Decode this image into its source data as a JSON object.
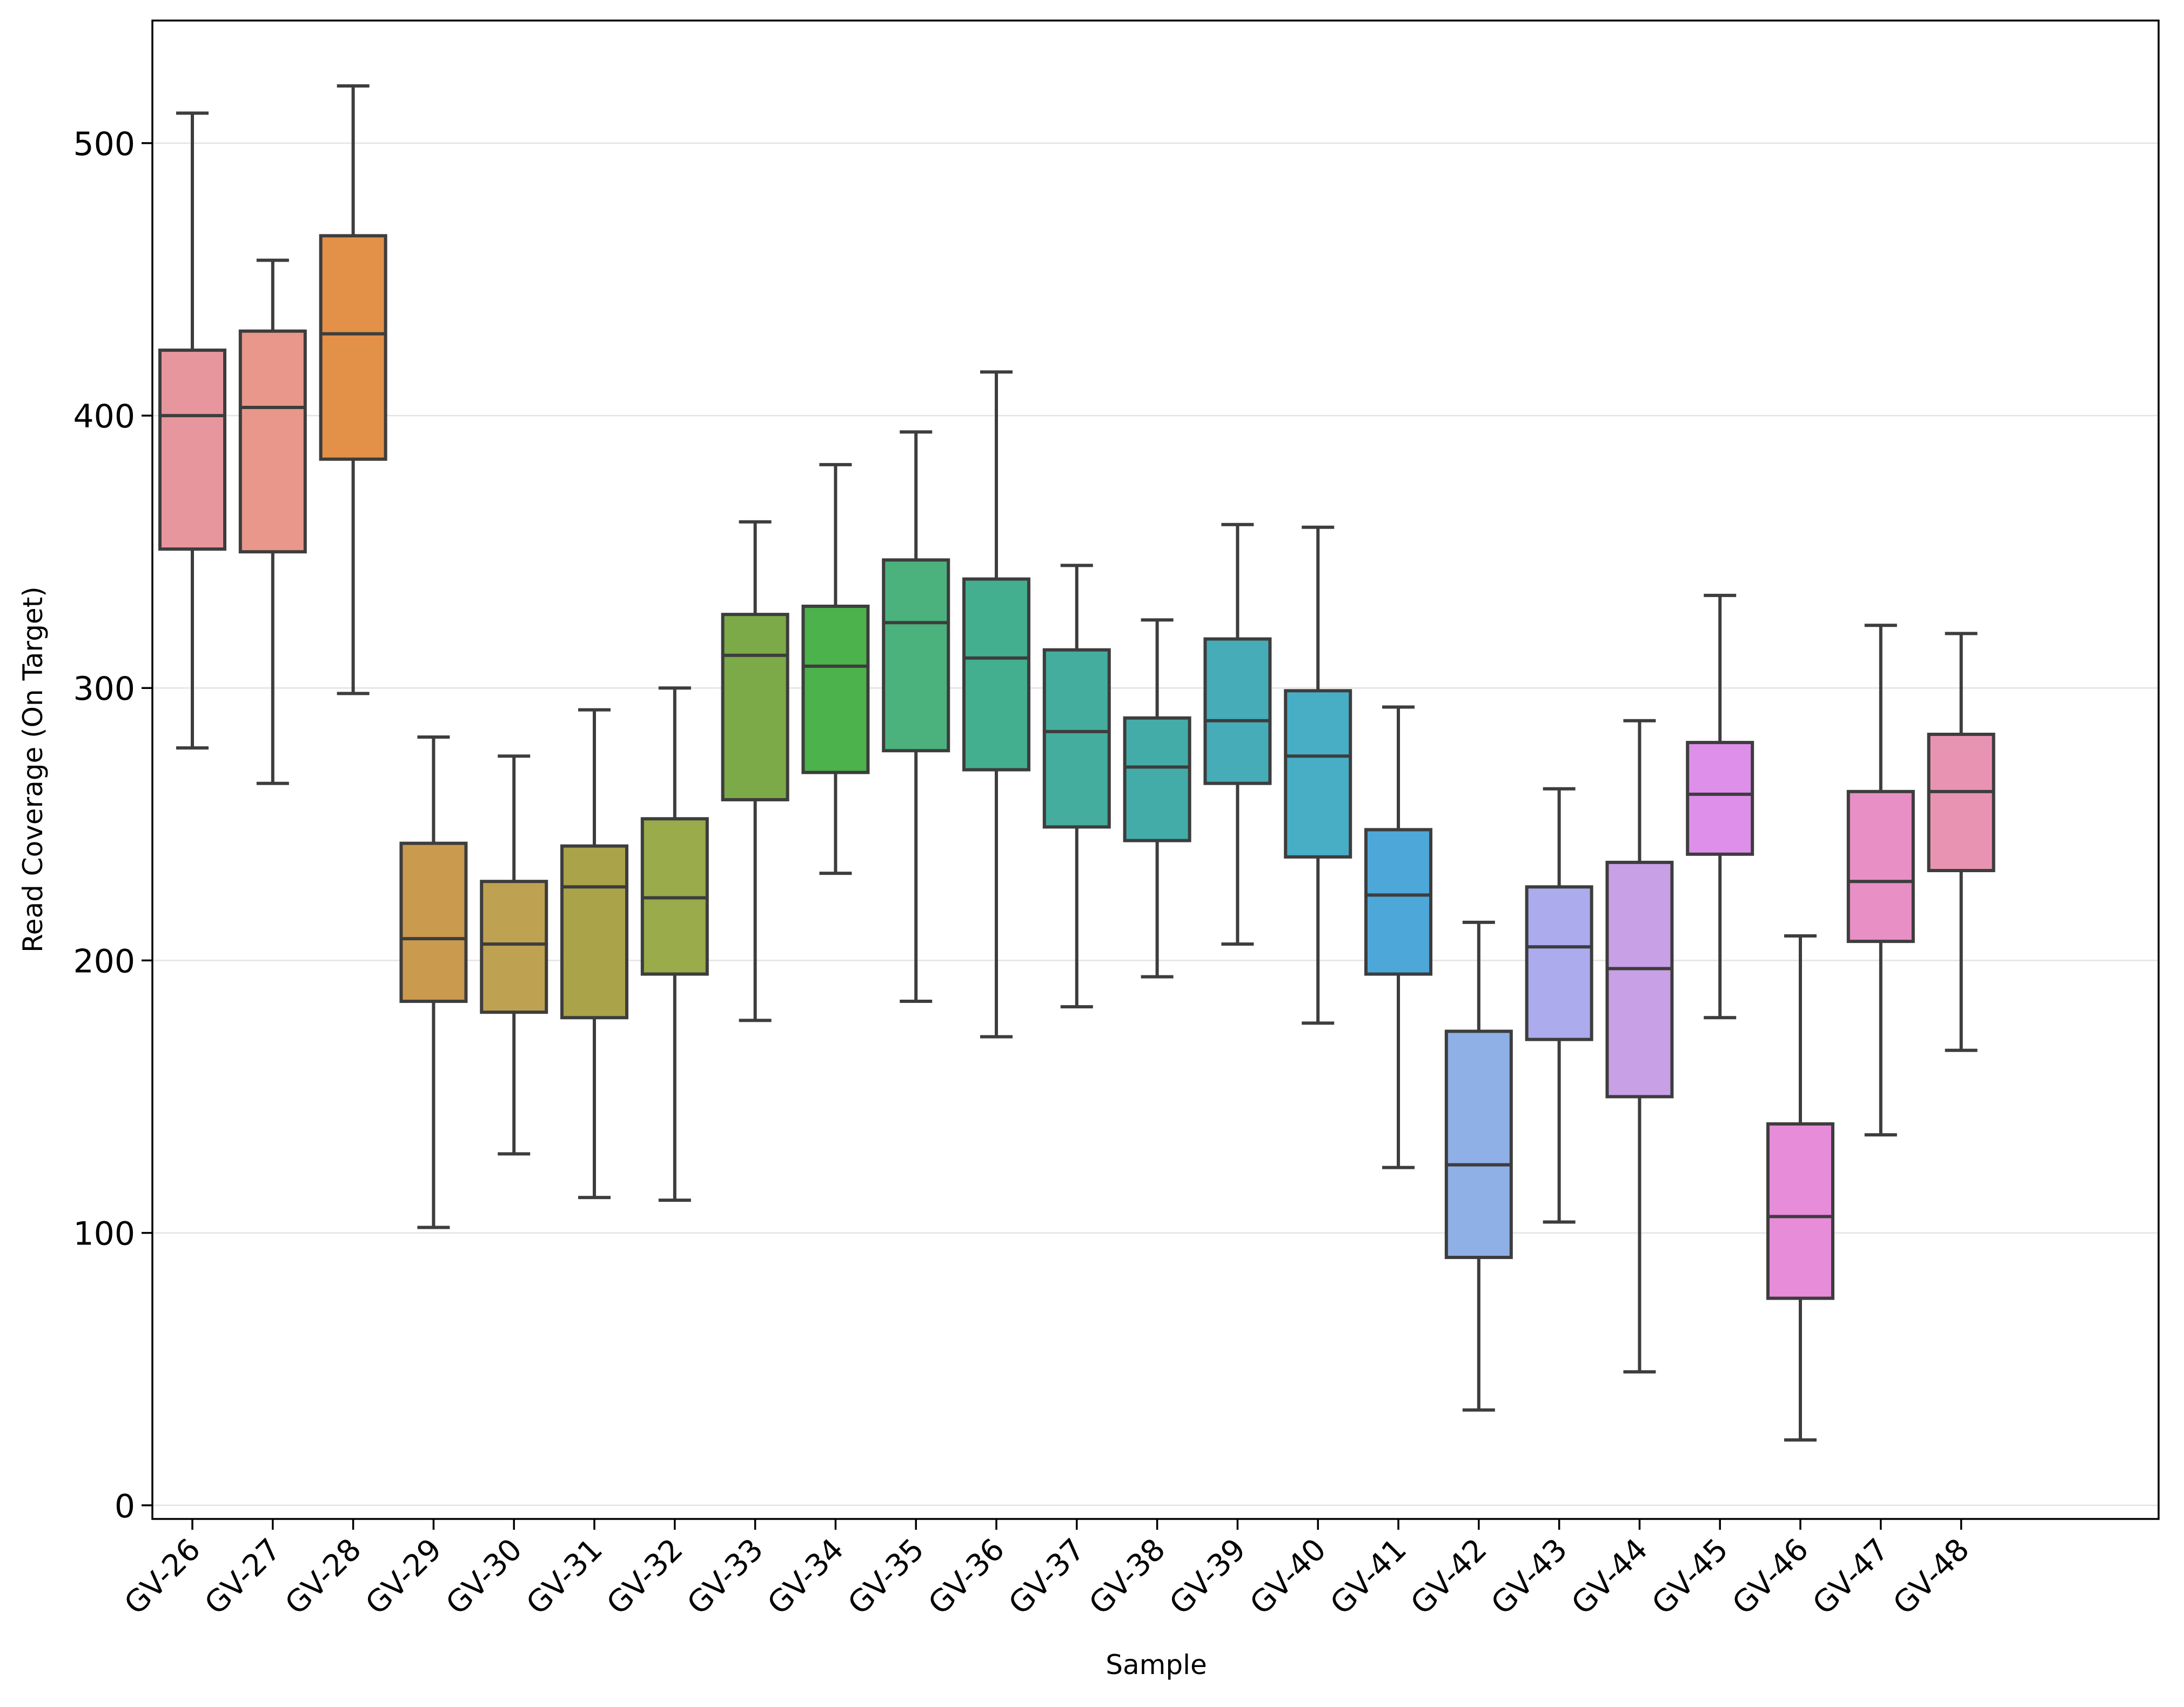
{
  "chart_data": {
    "type": "box",
    "title": "",
    "xlabel": "Sample",
    "ylabel": "Read Coverage (On Target)",
    "ylim": [
      -5,
      545
    ],
    "yticks": [
      0,
      100,
      200,
      300,
      400,
      500
    ],
    "grid": "horizontal",
    "legend": "none",
    "categories": [
      "GV-26",
      "GV-27",
      "GV-28",
      "GV-29",
      "GV-30",
      "GV-31",
      "GV-32",
      "GV-33",
      "GV-34",
      "GV-35",
      "GV-36",
      "GV-37",
      "GV-38",
      "GV-39",
      "GV-40",
      "GV-41",
      "GV-42",
      "GV-43",
      "GV-44",
      "GV-45",
      "GV-46",
      "GV-47",
      "GV-48"
    ],
    "boxes": [
      {
        "whisker_low": 278,
        "q1": 351,
        "median": 400,
        "q3": 424,
        "whisker_high": 511,
        "color": "#e8969e"
      },
      {
        "whisker_low": 265,
        "q1": 350,
        "median": 403,
        "q3": 431,
        "whisker_high": 457,
        "color": "#e8978a"
      },
      {
        "whisker_low": 298,
        "q1": 384,
        "median": 430,
        "q3": 466,
        "whisker_high": 521,
        "color": "#e39048"
      },
      {
        "whisker_low": 102,
        "q1": 185,
        "median": 208,
        "q3": 243,
        "whisker_high": 282,
        "color": "#ca9a4e"
      },
      {
        "whisker_low": 129,
        "q1": 181,
        "median": 206,
        "q3": 229,
        "whisker_high": 275,
        "color": "#bfa152"
      },
      {
        "whisker_low": 113,
        "q1": 179,
        "median": 227,
        "q3": 242,
        "whisker_high": 292,
        "color": "#aaa34a"
      },
      {
        "whisker_low": 112,
        "q1": 195,
        "median": 223,
        "q3": 252,
        "whisker_high": 300,
        "color": "#99ab4a"
      },
      {
        "whisker_low": 178,
        "q1": 259,
        "median": 312,
        "q3": 327,
        "whisker_high": 361,
        "color": "#7caa48"
      },
      {
        "whisker_low": 232,
        "q1": 269,
        "median": 308,
        "q3": 330,
        "whisker_high": 382,
        "color": "#4bb24c"
      },
      {
        "whisker_low": 185,
        "q1": 277,
        "median": 324,
        "q3": 347,
        "whisker_high": 394,
        "color": "#4bb27e"
      },
      {
        "whisker_low": 172,
        "q1": 270,
        "median": 311,
        "q3": 340,
        "whisker_high": 416,
        "color": "#44af8e"
      },
      {
        "whisker_low": 183,
        "q1": 249,
        "median": 284,
        "q3": 314,
        "whisker_high": 345,
        "color": "#44ad9e"
      },
      {
        "whisker_low": 194,
        "q1": 244,
        "median": 271,
        "q3": 289,
        "whisker_high": 325,
        "color": "#43aca8"
      },
      {
        "whisker_low": 206,
        "q1": 265,
        "median": 288,
        "q3": 318,
        "whisker_high": 360,
        "color": "#45acb8"
      },
      {
        "whisker_low": 177,
        "q1": 238,
        "median": 275,
        "q3": 299,
        "whisker_high": 359,
        "color": "#47aec6"
      },
      {
        "whisker_low": 124,
        "q1": 195,
        "median": 224,
        "q3": 248,
        "whisker_high": 293,
        "color": "#4da8d9"
      },
      {
        "whisker_low": 35,
        "q1": 91,
        "median": 125,
        "q3": 174,
        "whisker_high": 214,
        "color": "#8fb0e6"
      },
      {
        "whisker_low": 104,
        "q1": 171,
        "median": 205,
        "q3": 227,
        "whisker_high": 263,
        "color": "#ababee"
      },
      {
        "whisker_low": 49,
        "q1": 150,
        "median": 197,
        "q3": 236,
        "whisker_high": 288,
        "color": "#c7a0e6"
      },
      {
        "whisker_low": 179,
        "q1": 239,
        "median": 261,
        "q3": 280,
        "whisker_high": 334,
        "color": "#dd8fe9"
      },
      {
        "whisker_low": 24,
        "q1": 76,
        "median": 106,
        "q3": 140,
        "whisker_high": 209,
        "color": "#e68cd9"
      },
      {
        "whisker_low": 136,
        "q1": 207,
        "median": 229,
        "q3": 262,
        "whisker_high": 323,
        "color": "#e88fc5"
      },
      {
        "whisker_low": 167,
        "q1": 233,
        "median": 262,
        "q3": 283,
        "whisker_high": 320,
        "color": "#e993b3"
      }
    ]
  }
}
